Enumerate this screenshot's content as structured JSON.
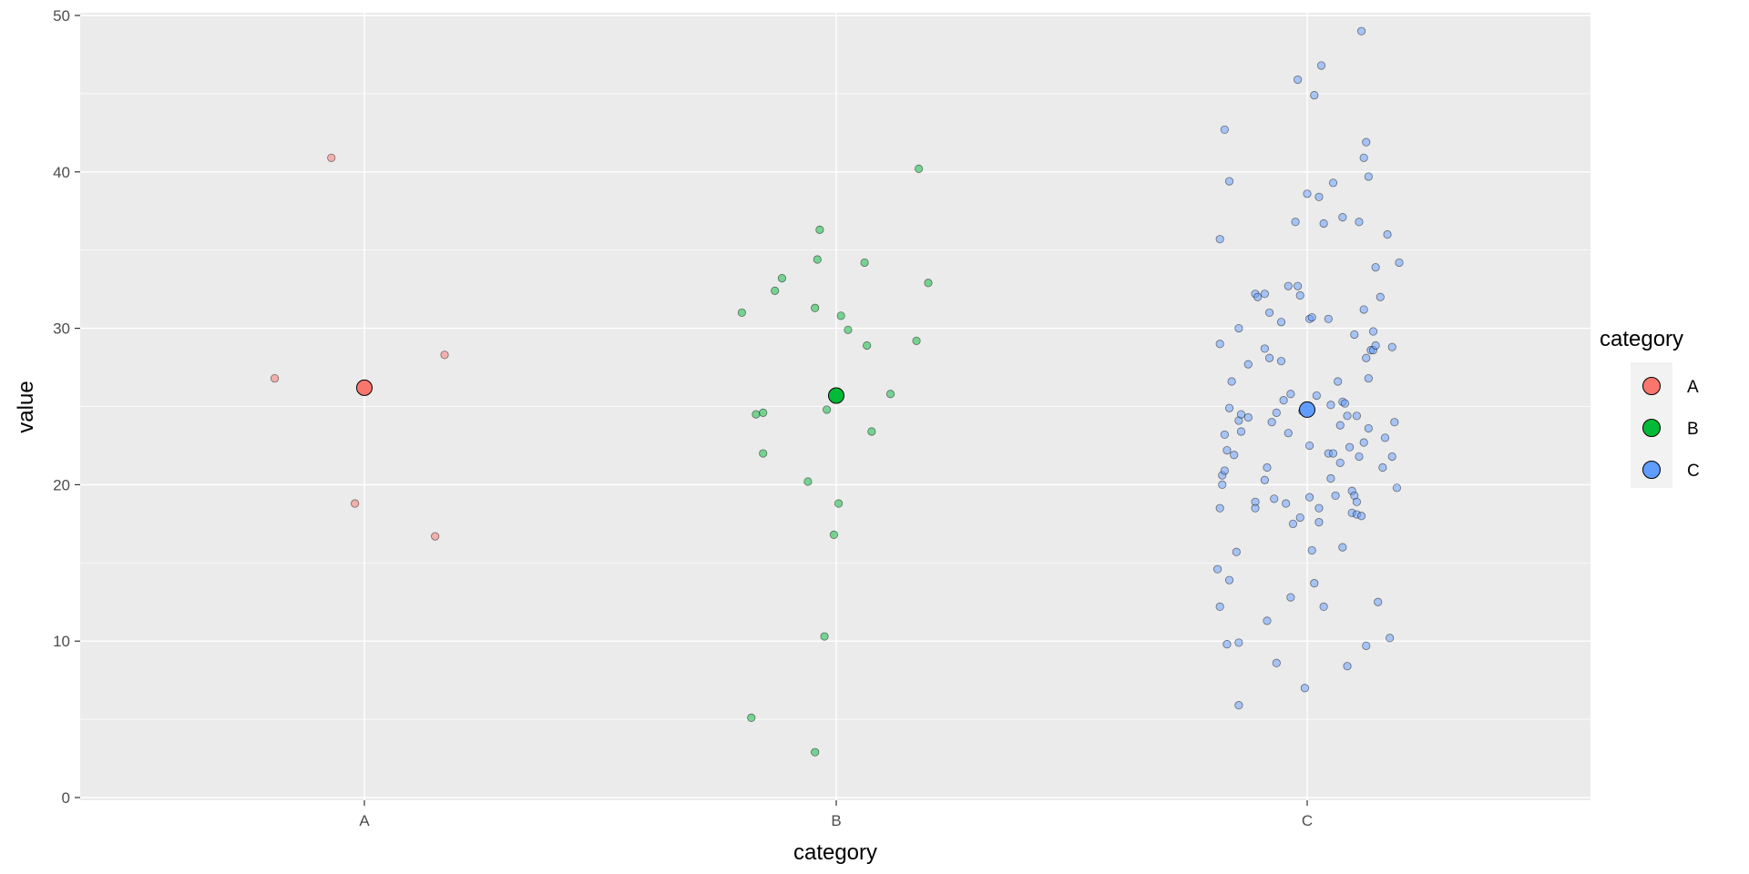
{
  "chart_data": {
    "type": "scatter",
    "title": "",
    "xlabel": "category",
    "ylabel": "value",
    "categories": [
      "A",
      "B",
      "C"
    ],
    "ylim": [
      0,
      50
    ],
    "yticks": [
      0,
      10,
      20,
      30,
      40,
      50
    ],
    "grid": true,
    "legend": {
      "title": "category",
      "placement": "right",
      "entries": [
        "A",
        "B",
        "C"
      ]
    },
    "colors": {
      "A": "#F8766D",
      "B": "#00BA38",
      "C": "#619CFF"
    },
    "series": [
      {
        "category": "A",
        "mean": 26.2,
        "points": [
          {
            "jitter": -0.19,
            "y": 26.8
          },
          {
            "jitter": -0.07,
            "y": 40.9
          },
          {
            "jitter": -0.02,
            "y": 18.8
          },
          {
            "jitter": 0.15,
            "y": 16.7
          },
          {
            "jitter": 0.17,
            "y": 28.3
          }
        ]
      },
      {
        "category": "B",
        "mean": 25.7,
        "points": [
          {
            "jitter": -0.2,
            "y": 31.0
          },
          {
            "jitter": -0.18,
            "y": 5.1
          },
          {
            "jitter": -0.17,
            "y": 24.5
          },
          {
            "jitter": -0.155,
            "y": 24.6
          },
          {
            "jitter": -0.155,
            "y": 22.0
          },
          {
            "jitter": -0.13,
            "y": 32.4
          },
          {
            "jitter": -0.115,
            "y": 33.2
          },
          {
            "jitter": -0.06,
            "y": 20.2
          },
          {
            "jitter": -0.045,
            "y": 31.3
          },
          {
            "jitter": -0.045,
            "y": 2.9
          },
          {
            "jitter": -0.04,
            "y": 34.4
          },
          {
            "jitter": -0.035,
            "y": 36.3
          },
          {
            "jitter": -0.02,
            "y": 24.8
          },
          {
            "jitter": -0.025,
            "y": 10.3
          },
          {
            "jitter": -0.005,
            "y": 16.8
          },
          {
            "jitter": 0.005,
            "y": 18.8
          },
          {
            "jitter": 0.01,
            "y": 30.8
          },
          {
            "jitter": 0.025,
            "y": 29.9
          },
          {
            "jitter": 0.06,
            "y": 34.2
          },
          {
            "jitter": 0.065,
            "y": 28.9
          },
          {
            "jitter": 0.075,
            "y": 23.4
          },
          {
            "jitter": 0.115,
            "y": 25.8
          },
          {
            "jitter": 0.17,
            "y": 29.2
          },
          {
            "jitter": 0.175,
            "y": 40.2
          },
          {
            "jitter": 0.195,
            "y": 32.9
          }
        ]
      },
      {
        "category": "C",
        "mean": 24.8,
        "points": [
          {
            "jitter": -0.19,
            "y": 14.6
          },
          {
            "jitter": -0.185,
            "y": 35.7
          },
          {
            "jitter": -0.185,
            "y": 29.0
          },
          {
            "jitter": -0.185,
            "y": 12.2
          },
          {
            "jitter": -0.185,
            "y": 18.5
          },
          {
            "jitter": -0.18,
            "y": 20.6
          },
          {
            "jitter": -0.18,
            "y": 20.0
          },
          {
            "jitter": -0.175,
            "y": 42.7
          },
          {
            "jitter": -0.175,
            "y": 23.2
          },
          {
            "jitter": -0.175,
            "y": 20.9
          },
          {
            "jitter": -0.17,
            "y": 22.2
          },
          {
            "jitter": -0.17,
            "y": 9.8
          },
          {
            "jitter": -0.165,
            "y": 39.4
          },
          {
            "jitter": -0.165,
            "y": 24.9
          },
          {
            "jitter": -0.165,
            "y": 13.9
          },
          {
            "jitter": -0.16,
            "y": 26.6
          },
          {
            "jitter": -0.155,
            "y": 21.9
          },
          {
            "jitter": -0.15,
            "y": 15.7
          },
          {
            "jitter": -0.145,
            "y": 30.0
          },
          {
            "jitter": -0.145,
            "y": 24.1
          },
          {
            "jitter": -0.145,
            "y": 9.9
          },
          {
            "jitter": -0.145,
            "y": 5.9
          },
          {
            "jitter": -0.14,
            "y": 24.5
          },
          {
            "jitter": -0.14,
            "y": 23.4
          },
          {
            "jitter": -0.125,
            "y": 27.7
          },
          {
            "jitter": -0.125,
            "y": 24.3
          },
          {
            "jitter": -0.11,
            "y": 32.2
          },
          {
            "jitter": -0.11,
            "y": 18.9
          },
          {
            "jitter": -0.11,
            "y": 18.5
          },
          {
            "jitter": -0.105,
            "y": 32.0
          },
          {
            "jitter": -0.09,
            "y": 32.2
          },
          {
            "jitter": -0.09,
            "y": 28.7
          },
          {
            "jitter": -0.09,
            "y": 20.3
          },
          {
            "jitter": -0.085,
            "y": 21.1
          },
          {
            "jitter": -0.085,
            "y": 11.3
          },
          {
            "jitter": -0.08,
            "y": 31.0
          },
          {
            "jitter": -0.08,
            "y": 28.1
          },
          {
            "jitter": -0.075,
            "y": 24.0
          },
          {
            "jitter": -0.07,
            "y": 19.1
          },
          {
            "jitter": -0.065,
            "y": 24.6
          },
          {
            "jitter": -0.065,
            "y": 8.6
          },
          {
            "jitter": -0.055,
            "y": 30.4
          },
          {
            "jitter": -0.055,
            "y": 27.9
          },
          {
            "jitter": -0.05,
            "y": 25.4
          },
          {
            "jitter": -0.045,
            "y": 18.8
          },
          {
            "jitter": -0.04,
            "y": 32.7
          },
          {
            "jitter": -0.04,
            "y": 23.3
          },
          {
            "jitter": -0.035,
            "y": 25.8
          },
          {
            "jitter": -0.035,
            "y": 12.8
          },
          {
            "jitter": -0.03,
            "y": 17.5
          },
          {
            "jitter": -0.025,
            "y": 36.8
          },
          {
            "jitter": -0.02,
            "y": 45.9
          },
          {
            "jitter": -0.02,
            "y": 32.7
          },
          {
            "jitter": -0.015,
            "y": 32.1
          },
          {
            "jitter": -0.015,
            "y": 17.9
          },
          {
            "jitter": -0.01,
            "y": 24.7
          },
          {
            "jitter": -0.005,
            "y": 7.0
          },
          {
            "jitter": 0.0,
            "y": 38.6
          },
          {
            "jitter": 0.005,
            "y": 30.6
          },
          {
            "jitter": 0.005,
            "y": 22.5
          },
          {
            "jitter": 0.005,
            "y": 19.2
          },
          {
            "jitter": 0.01,
            "y": 30.7
          },
          {
            "jitter": 0.01,
            "y": 15.8
          },
          {
            "jitter": 0.015,
            "y": 44.9
          },
          {
            "jitter": 0.015,
            "y": 13.7
          },
          {
            "jitter": 0.02,
            "y": 25.7
          },
          {
            "jitter": 0.025,
            "y": 38.4
          },
          {
            "jitter": 0.025,
            "y": 18.5
          },
          {
            "jitter": 0.025,
            "y": 17.6
          },
          {
            "jitter": 0.03,
            "y": 46.8
          },
          {
            "jitter": 0.035,
            "y": 36.7
          },
          {
            "jitter": 0.035,
            "y": 12.2
          },
          {
            "jitter": 0.045,
            "y": 30.6
          },
          {
            "jitter": 0.045,
            "y": 22.0
          },
          {
            "jitter": 0.05,
            "y": 25.1
          },
          {
            "jitter": 0.05,
            "y": 20.4
          },
          {
            "jitter": 0.055,
            "y": 39.3
          },
          {
            "jitter": 0.055,
            "y": 22.0
          },
          {
            "jitter": 0.06,
            "y": 19.3
          },
          {
            "jitter": 0.065,
            "y": 26.6
          },
          {
            "jitter": 0.07,
            "y": 23.8
          },
          {
            "jitter": 0.07,
            "y": 21.4
          },
          {
            "jitter": 0.075,
            "y": 37.1
          },
          {
            "jitter": 0.075,
            "y": 25.3
          },
          {
            "jitter": 0.08,
            "y": 25.2
          },
          {
            "jitter": 0.085,
            "y": 24.4
          },
          {
            "jitter": 0.085,
            "y": 8.4
          },
          {
            "jitter": 0.075,
            "y": 16.0
          },
          {
            "jitter": 0.09,
            "y": 22.4
          },
          {
            "jitter": 0.095,
            "y": 19.6
          },
          {
            "jitter": 0.095,
            "y": 18.2
          },
          {
            "jitter": 0.1,
            "y": 29.6
          },
          {
            "jitter": 0.1,
            "y": 19.3
          },
          {
            "jitter": 0.105,
            "y": 24.4
          },
          {
            "jitter": 0.105,
            "y": 18.9
          },
          {
            "jitter": 0.105,
            "y": 18.1
          },
          {
            "jitter": 0.11,
            "y": 36.8
          },
          {
            "jitter": 0.11,
            "y": 21.8
          },
          {
            "jitter": 0.115,
            "y": 49.0
          },
          {
            "jitter": 0.115,
            "y": 18.0
          },
          {
            "jitter": 0.12,
            "y": 40.9
          },
          {
            "jitter": 0.12,
            "y": 31.2
          },
          {
            "jitter": 0.12,
            "y": 22.7
          },
          {
            "jitter": 0.125,
            "y": 41.9
          },
          {
            "jitter": 0.125,
            "y": 28.1
          },
          {
            "jitter": 0.125,
            "y": 9.7
          },
          {
            "jitter": 0.13,
            "y": 39.7
          },
          {
            "jitter": 0.13,
            "y": 26.8
          },
          {
            "jitter": 0.13,
            "y": 23.6
          },
          {
            "jitter": 0.135,
            "y": 28.6
          },
          {
            "jitter": 0.14,
            "y": 29.8
          },
          {
            "jitter": 0.14,
            "y": 28.6
          },
          {
            "jitter": 0.145,
            "y": 33.9
          },
          {
            "jitter": 0.145,
            "y": 28.9
          },
          {
            "jitter": 0.15,
            "y": 12.5
          },
          {
            "jitter": 0.155,
            "y": 32.0
          },
          {
            "jitter": 0.16,
            "y": 21.1
          },
          {
            "jitter": 0.165,
            "y": 23.0
          },
          {
            "jitter": 0.17,
            "y": 36.0
          },
          {
            "jitter": 0.175,
            "y": 10.2
          },
          {
            "jitter": 0.18,
            "y": 28.8
          },
          {
            "jitter": 0.18,
            "y": 21.8
          },
          {
            "jitter": 0.185,
            "y": 24.0
          },
          {
            "jitter": 0.19,
            "y": 19.8
          },
          {
            "jitter": 0.195,
            "y": 34.2
          }
        ]
      }
    ]
  }
}
